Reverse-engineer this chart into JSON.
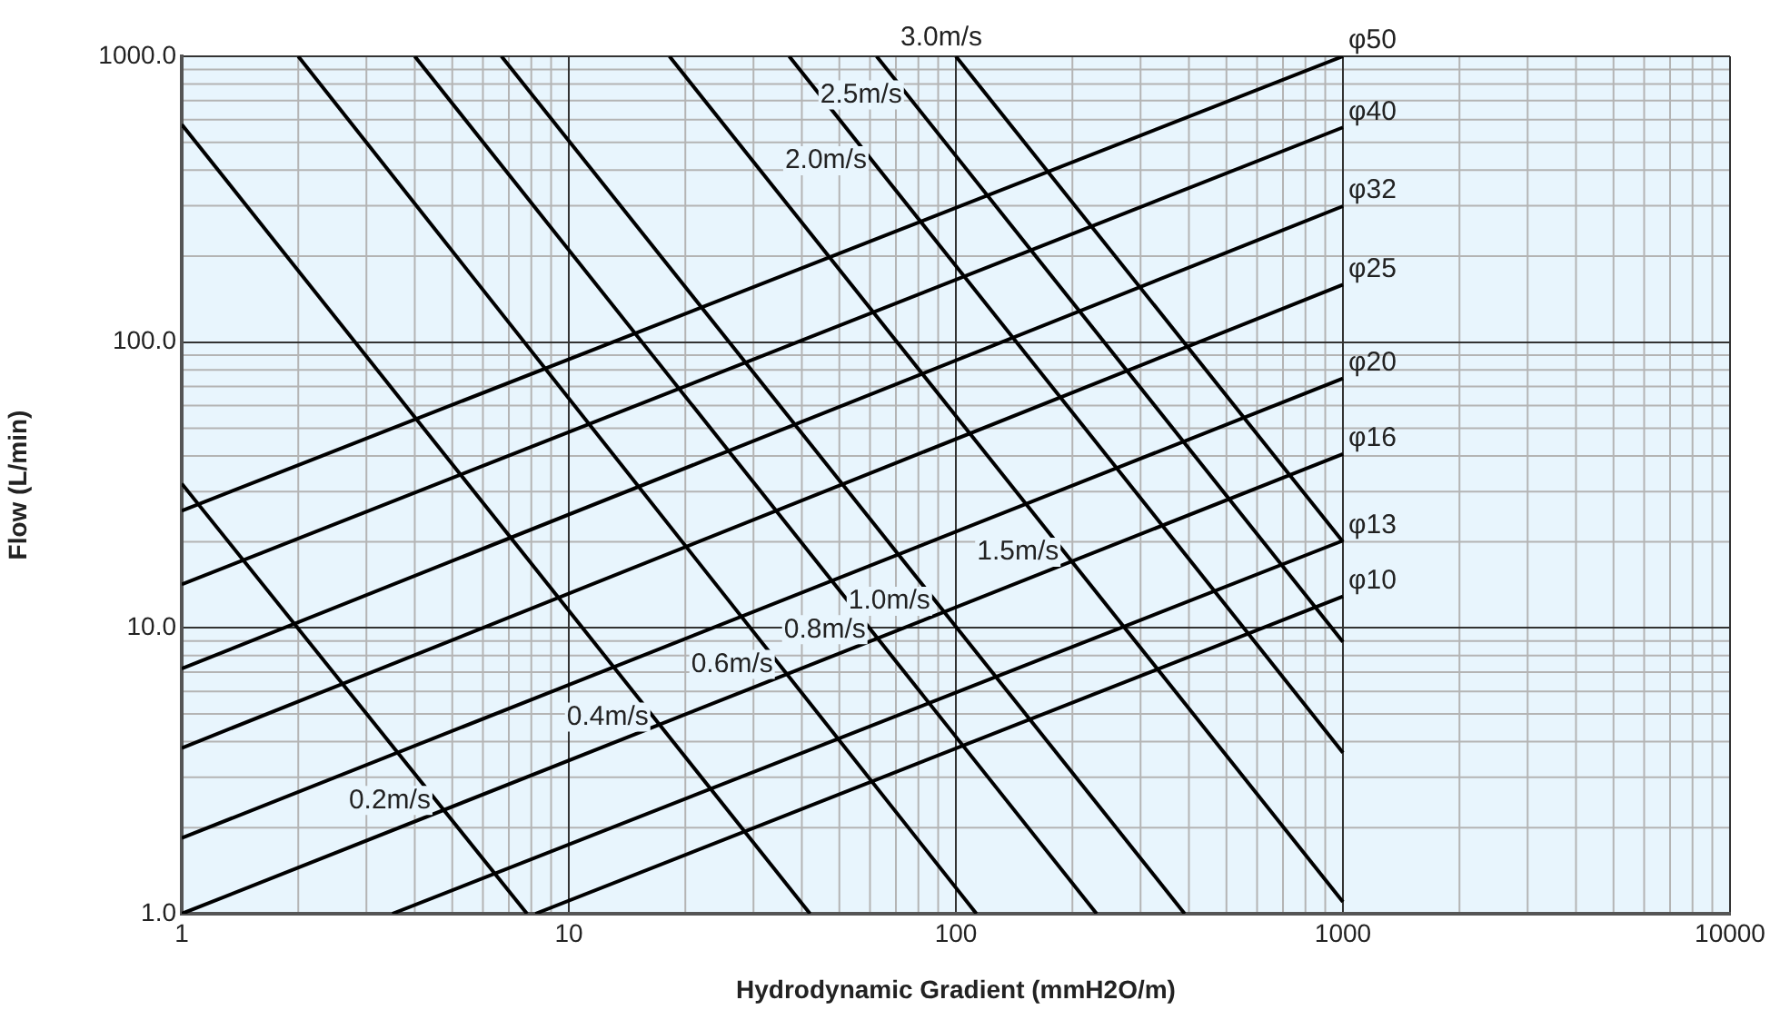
{
  "chart_data": {
    "type": "line",
    "xlabel": "Hydrodynamic Gradient (mmH2O/m)",
    "ylabel": "Flow (L/min)",
    "log": "xy",
    "grid": true,
    "legend": false,
    "marker": "none",
    "line_style": "solid",
    "xlim": [
      1,
      10000
    ],
    "xticks": [
      1,
      10,
      100,
      1000,
      10000
    ],
    "ylim": [
      1,
      1000
    ],
    "yticks": [
      {
        "value": 1,
        "label": "1.0"
      },
      {
        "value": 10,
        "label": "10.0"
      },
      {
        "value": 100,
        "label": "100.0"
      },
      {
        "value": 1000,
        "label": "1000.0"
      }
    ],
    "series": [
      {
        "name": "φ50",
        "color": "#000000",
        "x": [
          1,
          1000
        ],
        "values": [
          25.7,
          1000
        ]
      },
      {
        "name": "φ40",
        "color": "#000000",
        "x": [
          1,
          1000
        ],
        "values": [
          14.2,
          564
        ]
      },
      {
        "name": "φ32",
        "color": "#000000",
        "x": [
          1,
          1000
        ],
        "values": [
          7.2,
          299
        ]
      },
      {
        "name": "φ25",
        "color": "#000000",
        "x": [
          1,
          1000
        ],
        "values": [
          3.8,
          159
        ]
      },
      {
        "name": "φ20",
        "color": "#000000",
        "x": [
          1,
          1000
        ],
        "values": [
          1.84,
          74.6
        ]
      },
      {
        "name": "φ16",
        "color": "#000000",
        "x": [
          1,
          1000
        ],
        "values": [
          1.0,
          40.6
        ]
      },
      {
        "name": "φ13",
        "color": "#000000",
        "x": [
          3.5,
          1000
        ],
        "values": [
          1,
          20.2
        ]
      },
      {
        "name": "φ10",
        "color": "#000000",
        "x": [
          8.2,
          1000
        ],
        "values": [
          1,
          12.9
        ]
      },
      {
        "color": "#000000",
        "x": [
          1,
          7.8
        ],
        "values": [
          32,
          1
        ]
      },
      {
        "color": "#000000",
        "x": [
          1,
          42
        ],
        "values": [
          578,
          1
        ]
      },
      {
        "color": "#000000",
        "x": [
          2,
          113
        ],
        "values": [
          1000,
          1
        ]
      },
      {
        "color": "#000000",
        "x": [
          4,
          231
        ],
        "values": [
          1000,
          1
        ]
      },
      {
        "color": "#000000",
        "x": [
          6.7,
          390
        ],
        "values": [
          1000,
          1
        ]
      },
      {
        "color": "#000000",
        "x": [
          18.2,
          1000
        ],
        "values": [
          1000,
          1.1
        ]
      },
      {
        "color": "#000000",
        "x": [
          37.1,
          1000
        ],
        "values": [
          1000,
          3.66
        ]
      },
      {
        "color": "#000000",
        "x": [
          62.4,
          1000
        ],
        "values": [
          1000,
          8.93
        ]
      },
      {
        "color": "#000000",
        "x": [
          100,
          1000
        ],
        "values": [
          1000,
          20
        ]
      }
    ],
    "annotations": [
      {
        "text": "3.0m/s",
        "x": 100,
        "y": 1000
      },
      {
        "text": "2.5m/s",
        "x": 75,
        "y": 733
      },
      {
        "text": "2.0m/s",
        "x": 60.8,
        "y": 431
      },
      {
        "text": "1.5m/s",
        "x": 190.5,
        "y": 18.4
      },
      {
        "text": "1.0m/s",
        "x": 88.7,
        "y": 12.4
      },
      {
        "text": "0.8m/s",
        "x": 60.4,
        "y": 9.86
      },
      {
        "text": "0.6m/s",
        "x": 34.8,
        "y": 7.46
      },
      {
        "text": "0.4m/s",
        "x": 16.6,
        "y": 4.88
      },
      {
        "text": "0.2m/s",
        "x": 4.54,
        "y": 2.49
      }
    ]
  }
}
